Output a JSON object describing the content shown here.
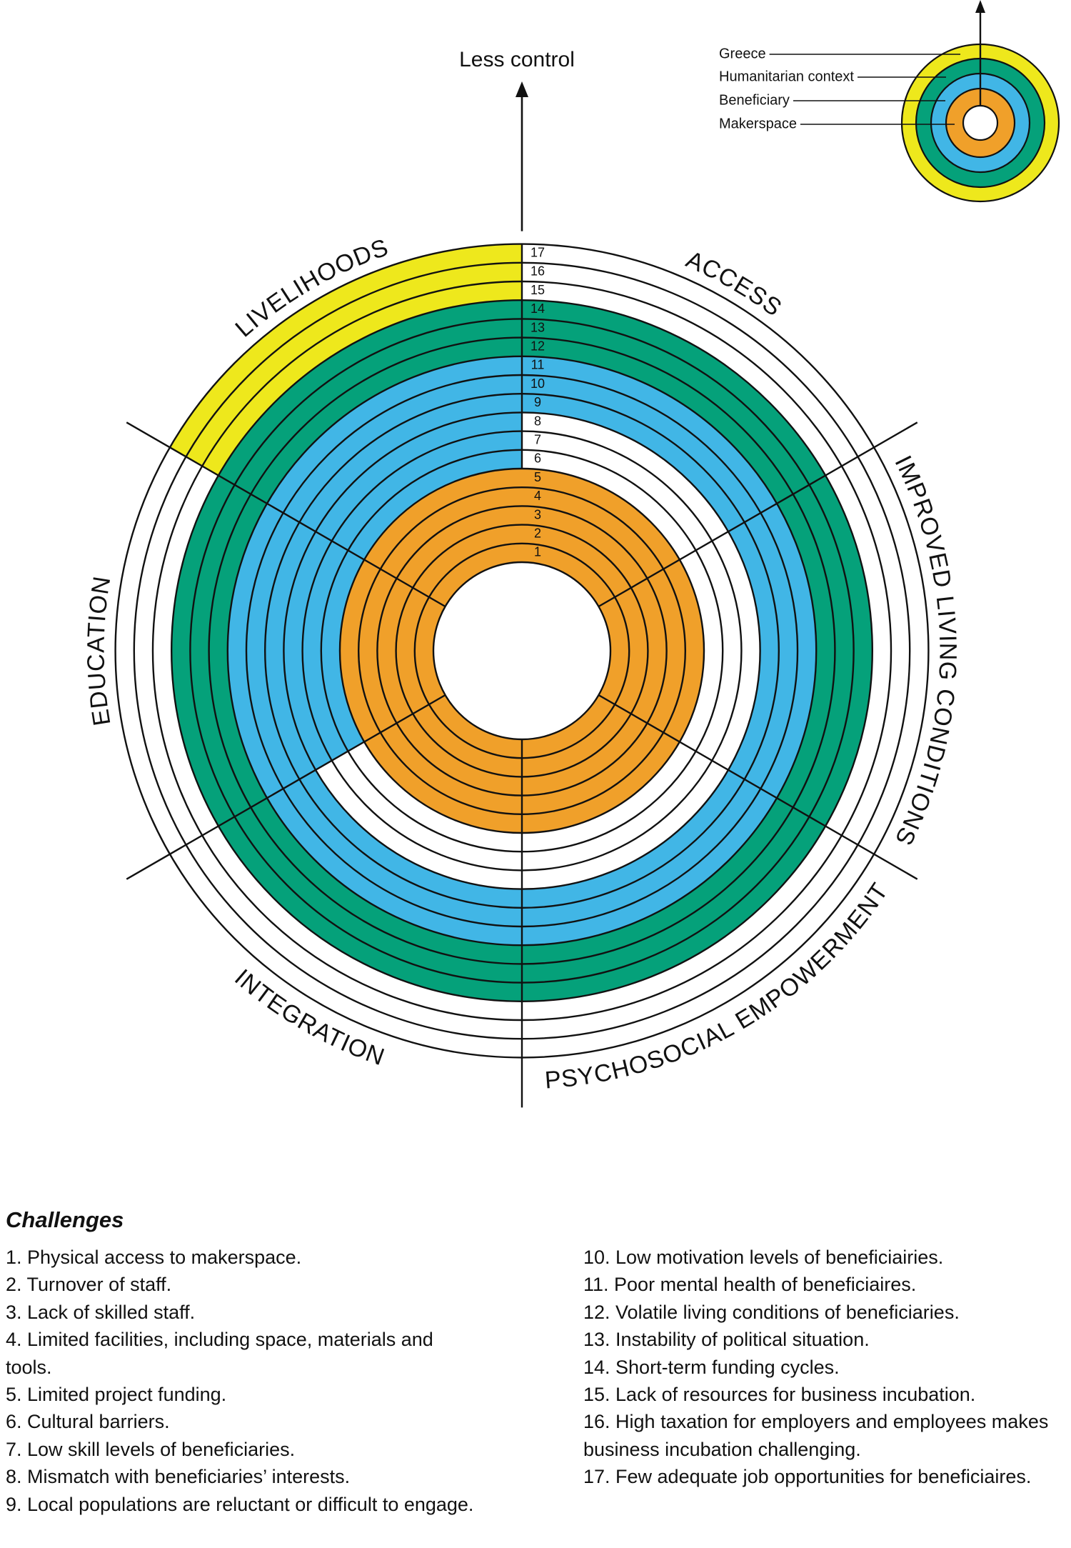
{
  "header": {
    "title": "Less control"
  },
  "legend": [
    "Greece",
    "Humanitarian context",
    "Beneficiary",
    "Makerspace"
  ],
  "sectors": [
    "ACCESS",
    "IMPROVED LIVING CONDITIONS",
    "PSYCHOSOCIAL EMPOWERMENT",
    "INTEGRATION",
    "EDUCATION",
    "LIVELIHOODS"
  ],
  "rings": [
    1,
    2,
    3,
    4,
    5,
    6,
    7,
    8,
    9,
    10,
    11,
    12,
    13,
    14,
    15,
    16,
    17
  ],
  "challenges": {
    "title": "Challenges",
    "items": [
      "1. Physical access to makerspace.",
      "2. Turnover of staff.",
      "3. Lack of skilled staff.",
      "4. Limited facilities, including space, materials and tools.",
      "5. Limited project funding.",
      "6. Cultural barriers.",
      "7. Low skill levels of beneficiaries.",
      "8. Mismatch with beneficiaries’ interests.",
      "9. Local populations are reluctant or difficult to engage.",
      "10. Low motivation levels of beneficiairies.",
      "11. Poor mental health of beneficiaires.",
      "12. Volatile living conditions of beneficiaries.",
      "13. Instability of political situation.",
      "14. Short-term funding cycles.",
      "15. Lack of resources for business incubation.",
      "16. High taxation for employers and employees makes business incubation challenging.",
      "17. Few adequate job opportunities for beneficiaires."
    ]
  }
}
